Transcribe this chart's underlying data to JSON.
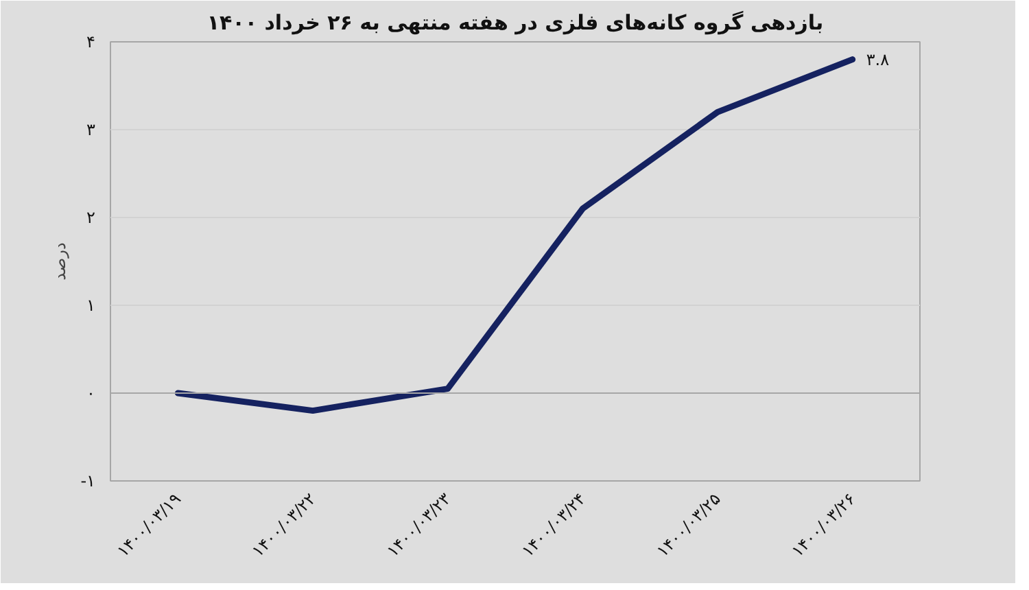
{
  "chart_data": {
    "type": "line",
    "title": "بازدهی گروه کانه‌های فلزی در هفته منتهی به ۲۶ خرداد ۱۴۰۰",
    "ylabel": "درصد",
    "categories": [
      "۱۴۰۰/۰۳/۱۹",
      "۱۴۰۰/۰۳/۲۲",
      "۱۴۰۰/۰۳/۲۳",
      "۱۴۰۰/۰۳/۲۴",
      "۱۴۰۰/۰۳/۲۵",
      "۱۴۰۰/۰۳/۲۶"
    ],
    "series": [
      {
        "color": "#152260",
        "values": [
          0,
          -0.2,
          0.05,
          2.1,
          3.2,
          3.8
        ],
        "value_labels": [
          null,
          null,
          null,
          null,
          null,
          "۳.۸"
        ]
      }
    ],
    "ylim": [
      -1,
      4
    ],
    "yticks": [
      {
        "value": -1,
        "label": "-۱"
      },
      {
        "value": 0,
        "label": "۰"
      },
      {
        "value": 1,
        "label": "۱"
      },
      {
        "value": 2,
        "label": "۲"
      },
      {
        "value": 3,
        "label": "۳"
      },
      {
        "value": 4,
        "label": "۴"
      }
    ],
    "ref_lines": [
      {
        "axis": "y",
        "value": 0,
        "color": "#a6a6a6"
      }
    ],
    "grid": "y",
    "marker": "none",
    "line_style": "solid"
  }
}
